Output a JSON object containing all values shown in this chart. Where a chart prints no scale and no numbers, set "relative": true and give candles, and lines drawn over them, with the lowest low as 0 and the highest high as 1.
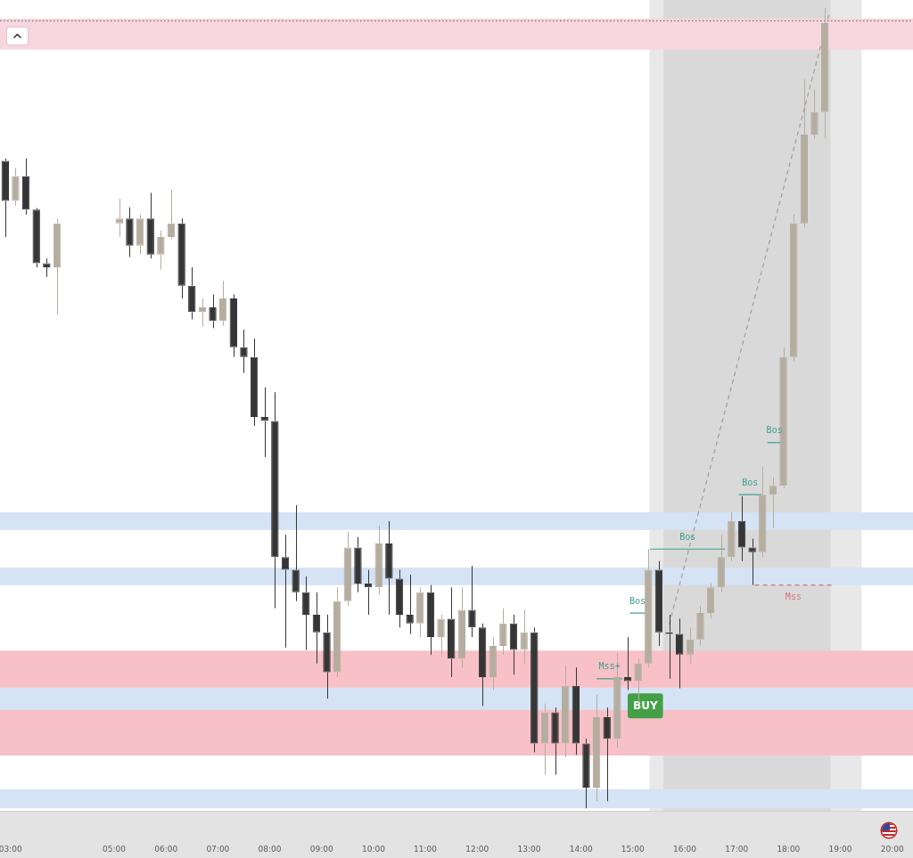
{
  "chart_data": {
    "type": "candlestick",
    "relative": true,
    "tick_labels": "x",
    "xlim": [
      2.8,
      20.4
    ],
    "xticks": [
      {
        "value": 3,
        "label": "03:00"
      },
      {
        "value": 5,
        "label": "05:00"
      },
      {
        "value": 6,
        "label": "06:00"
      },
      {
        "value": 7,
        "label": "07:00"
      },
      {
        "value": 8,
        "label": "08:00"
      },
      {
        "value": 9,
        "label": "09:00"
      },
      {
        "value": 10,
        "label": "10:00"
      },
      {
        "value": 11,
        "label": "11:00"
      },
      {
        "value": 12,
        "label": "12:00"
      },
      {
        "value": 13,
        "label": "13:00"
      },
      {
        "value": 14,
        "label": "14:00"
      },
      {
        "value": 15,
        "label": "15:00"
      },
      {
        "value": 16,
        "label": "16:00"
      },
      {
        "value": 17,
        "label": "17:00"
      },
      {
        "value": 18,
        "label": "18:00"
      },
      {
        "value": 19,
        "label": "19:00"
      },
      {
        "value": 20,
        "label": "20:00"
      }
    ],
    "x": [
      2.9,
      3.1,
      3.3,
      3.5,
      3.7,
      3.9,
      5.1,
      5.3,
      5.5,
      5.7,
      5.9,
      6.1,
      6.3,
      6.5,
      6.7,
      6.9,
      7.1,
      7.3,
      7.5,
      7.7,
      7.9,
      8.1,
      8.3,
      8.5,
      8.7,
      8.9,
      9.1,
      9.3,
      9.5,
      9.7,
      9.9,
      10.1,
      10.3,
      10.5,
      10.7,
      10.9,
      11.1,
      11.3,
      11.5,
      11.7,
      11.9,
      12.1,
      12.3,
      12.5,
      12.7,
      12.9,
      13.1,
      13.3,
      13.5,
      13.7,
      13.9,
      14.1,
      14.3,
      14.5,
      14.7,
      14.9,
      15.1,
      15.3,
      15.5,
      15.7,
      15.9,
      16.1,
      16.3,
      16.5,
      16.7,
      16.9,
      17.1,
      17.3,
      17.5,
      17.7,
      17.9,
      18.1,
      18.3,
      18.5,
      18.7
    ],
    "ohlc": [
      [
        0.809,
        0.812,
        0.714,
        0.759
      ],
      [
        0.759,
        0.8,
        0.753,
        0.79
      ],
      [
        0.79,
        0.812,
        0.742,
        0.748
      ],
      [
        0.748,
        0.75,
        0.676,
        0.681
      ],
      [
        0.681,
        0.687,
        0.664,
        0.676
      ],
      [
        0.676,
        0.737,
        0.617,
        0.731
      ],
      [
        0.731,
        0.762,
        0.714,
        0.737
      ],
      [
        0.737,
        0.751,
        0.689,
        0.703
      ],
      [
        0.703,
        0.742,
        0.692,
        0.737
      ],
      [
        0.737,
        0.769,
        0.687,
        0.692
      ],
      [
        0.692,
        0.722,
        0.673,
        0.714
      ],
      [
        0.714,
        0.773,
        0.711,
        0.731
      ],
      [
        0.731,
        0.737,
        0.637,
        0.653
      ],
      [
        0.653,
        0.676,
        0.611,
        0.62
      ],
      [
        0.62,
        0.637,
        0.602,
        0.626
      ],
      [
        0.626,
        0.642,
        0.6,
        0.609
      ],
      [
        0.609,
        0.659,
        0.603,
        0.637
      ],
      [
        0.637,
        0.642,
        0.564,
        0.576
      ],
      [
        0.576,
        0.598,
        0.544,
        0.564
      ],
      [
        0.564,
        0.587,
        0.478,
        0.489
      ],
      [
        0.489,
        0.526,
        0.439,
        0.484
      ],
      [
        0.484,
        0.52,
        0.25,
        0.314
      ],
      [
        0.314,
        0.342,
        0.201,
        0.298
      ],
      [
        0.298,
        0.379,
        0.259,
        0.27
      ],
      [
        0.27,
        0.29,
        0.198,
        0.242
      ],
      [
        0.242,
        0.27,
        0.181,
        0.22
      ],
      [
        0.22,
        0.242,
        0.137,
        0.17
      ],
      [
        0.17,
        0.276,
        0.164,
        0.259
      ],
      [
        0.259,
        0.346,
        0.253,
        0.326
      ],
      [
        0.326,
        0.339,
        0.27,
        0.281
      ],
      [
        0.281,
        0.298,
        0.242,
        0.276
      ],
      [
        0.276,
        0.353,
        0.267,
        0.331
      ],
      [
        0.331,
        0.359,
        0.242,
        0.287
      ],
      [
        0.287,
        0.298,
        0.226,
        0.242
      ],
      [
        0.242,
        0.292,
        0.218,
        0.231
      ],
      [
        0.231,
        0.276,
        0.214,
        0.27
      ],
      [
        0.27,
        0.279,
        0.192,
        0.214
      ],
      [
        0.214,
        0.242,
        0.189,
        0.237
      ],
      [
        0.237,
        0.276,
        0.164,
        0.187
      ],
      [
        0.187,
        0.276,
        0.176,
        0.248
      ],
      [
        0.248,
        0.303,
        0.214,
        0.226
      ],
      [
        0.226,
        0.231,
        0.128,
        0.164
      ],
      [
        0.164,
        0.214,
        0.148,
        0.203
      ],
      [
        0.203,
        0.25,
        0.192,
        0.231
      ],
      [
        0.231,
        0.242,
        0.167,
        0.198
      ],
      [
        0.198,
        0.248,
        0.181,
        0.22
      ],
      [
        0.22,
        0.226,
        0.07,
        0.081
      ],
      [
        0.081,
        0.131,
        0.042,
        0.12
      ],
      [
        0.12,
        0.126,
        0.042,
        0.081
      ],
      [
        0.081,
        0.179,
        0.064,
        0.153
      ],
      [
        0.153,
        0.176,
        0.067,
        0.081
      ],
      [
        0.081,
        0.087,
        0,
        0.026
      ],
      [
        0.026,
        0.142,
        0.009,
        0.114
      ],
      [
        0.114,
        0.126,
        0.009,
        0.087
      ],
      [
        0.087,
        0.194,
        0.076,
        0.164
      ],
      [
        0.164,
        0.214,
        0.148,
        0.159
      ],
      [
        0.159,
        0.187,
        0.131,
        0.181
      ],
      [
        0.181,
        0.324,
        0.176,
        0.298
      ],
      [
        0.298,
        0.309,
        0.203,
        0.22
      ],
      [
        0.22,
        0.242,
        0.162,
        0.218
      ],
      [
        0.218,
        0.237,
        0.15,
        0.192
      ],
      [
        0.192,
        0.226,
        0.181,
        0.211
      ],
      [
        0.211,
        0.253,
        0.203,
        0.244
      ],
      [
        0.244,
        0.281,
        0.237,
        0.276
      ],
      [
        0.276,
        0.342,
        0.27,
        0.314
      ],
      [
        0.314,
        0.37,
        0.309,
        0.359
      ],
      [
        0.359,
        0.39,
        0.309,
        0.326
      ],
      [
        0.326,
        0.337,
        0.279,
        0.32
      ],
      [
        0.32,
        0.427,
        0.314,
        0.392
      ],
      [
        0.392,
        0.414,
        0.35,
        0.403
      ],
      [
        0.403,
        0.576,
        0.4,
        0.564
      ],
      [
        0.564,
        0.742,
        0.559,
        0.731
      ],
      [
        0.731,
        0.911,
        0.726,
        0.842
      ],
      [
        0.842,
        0.898,
        0.837,
        0.87
      ],
      [
        0.87,
        1,
        0.837,
        0.981
      ]
    ],
    "colors": [
      "#363636",
      "#b5ad9f",
      "#363636",
      "#363636",
      "#363636",
      "#b5ad9f",
      "#b5ad9f",
      "#363636",
      "#b5ad9f",
      "#363636",
      "#b5ad9f",
      "#b5ad9f",
      "#363636",
      "#363636",
      "#b5ad9f",
      "#363636",
      "#b5ad9f",
      "#363636",
      "#363636",
      "#363636",
      "#363636",
      "#363636",
      "#363636",
      "#363636",
      "#363636",
      "#363636",
      "#363636",
      "#b5ad9f",
      "#b5ad9f",
      "#363636",
      "#363636",
      "#b5ad9f",
      "#363636",
      "#363636",
      "#363636",
      "#b5ad9f",
      "#363636",
      "#b5ad9f",
      "#363636",
      "#b5ad9f",
      "#363636",
      "#363636",
      "#b5ad9f",
      "#b5ad9f",
      "#363636",
      "#b5ad9f",
      "#363636",
      "#b5ad9f",
      "#363636",
      "#b5ad9f",
      "#363636",
      "#363636",
      "#b5ad9f",
      "#363636",
      "#b5ad9f",
      "#363636",
      "#b5ad9f",
      "#b5ad9f",
      "#363636",
      "#363636",
      "#363636",
      "#b5ad9f",
      "#b5ad9f",
      "#b5ad9f",
      "#b5ad9f",
      "#b5ad9f",
      "#363636",
      "#363636",
      "#b5ad9f",
      "#b5ad9f",
      "#b5ad9f",
      "#b5ad9f",
      "#b5ad9f",
      "#b5ad9f",
      "#b5ad9f"
    ],
    "series": [
      {
        "type": "line",
        "x": [
          15.7,
          18.78
        ],
        "values": [
          0.23,
          0.992
        ],
        "color": "#9e9e9e",
        "line_style": "dashed"
      },
      {
        "type": "line",
        "name": "Mss+",
        "x": [
          14.3,
          14.8
        ],
        "values": [
          0.162,
          0.162
        ],
        "color": "#3a9e8f"
      },
      {
        "type": "line",
        "name": "Bos",
        "x": [
          14.94,
          15.24
        ],
        "values": [
          0.244,
          0.244
        ],
        "color": "#3a9e8f"
      },
      {
        "type": "line",
        "name": "Bos",
        "x": [
          15.33,
          16.78
        ],
        "values": [
          0.324,
          0.324
        ],
        "color": "#3a9e8f"
      },
      {
        "type": "line",
        "name": "Bos",
        "x": [
          17.04,
          17.48
        ],
        "values": [
          0.392,
          0.392
        ],
        "color": "#3a9e8f"
      },
      {
        "type": "line",
        "name": "Bos",
        "x": [
          17.59,
          17.87
        ],
        "values": [
          0.457,
          0.457
        ],
        "color": "#3a9e8f"
      },
      {
        "type": "line",
        "name": "Mss",
        "x": [
          17.35,
          18.84
        ],
        "values": [
          0.279,
          0.279
        ],
        "color": "#d9727a",
        "line_style": "dashed"
      }
    ],
    "bands": [
      {
        "axis": "x",
        "from": 15.32,
        "to": 19.41,
        "color": "#e8e8e8"
      },
      {
        "axis": "x",
        "from": 15.59,
        "to": 18.81,
        "color": "#d9d9d9"
      },
      {
        "axis": "y",
        "from": 0.066,
        "to": 0.197,
        "color": "#f8c1c7"
      },
      {
        "axis": "y",
        "from": 0.348,
        "to": 0.37,
        "color": "#d5e3f5"
      },
      {
        "axis": "y",
        "from": 0.279,
        "to": 0.301,
        "color": "#d5e3f5"
      },
      {
        "axis": "y",
        "from": 0.123,
        "to": 0.151,
        "color": "#d5e3f5"
      },
      {
        "axis": "y",
        "from": 0,
        "to": 0.024,
        "color": "#d5e3f5"
      },
      {
        "axis": "y",
        "from": 0.948,
        "to": 0.987,
        "color": "#f7d6df"
      }
    ],
    "ref_lines": [
      {
        "axis": "y",
        "value": 0.984,
        "color": "#555555",
        "line_style": "dotted"
      }
    ],
    "annotations": [
      {
        "text": "BUY",
        "x": 15.24,
        "y": 0.128
      }
    ]
  }
}
